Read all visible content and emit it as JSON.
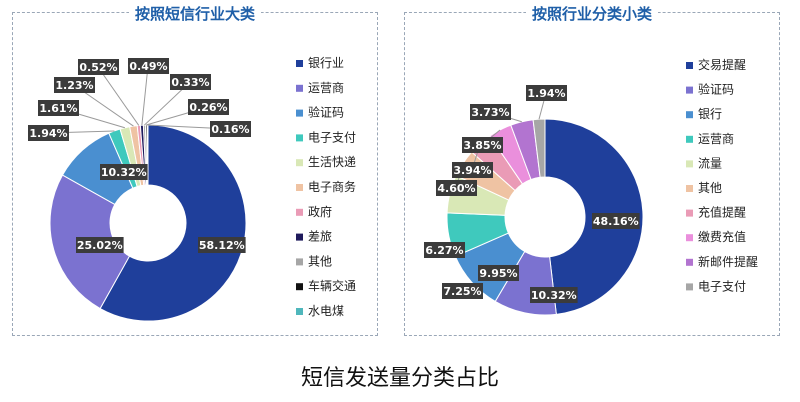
{
  "caption": "短信发送量分类占比",
  "chart_data": [
    {
      "type": "pie",
      "title": "按照短信行业大类",
      "categories": [
        "银行业",
        "运营商",
        "验证码",
        "电子支付",
        "生活快递",
        "电子商务",
        "政府",
        "差旅",
        "其他",
        "车辆交通",
        "水电煤"
      ],
      "values": [
        58.12,
        25.02,
        10.32,
        1.94,
        1.61,
        1.23,
        0.52,
        0.49,
        0.33,
        0.26,
        0.16
      ],
      "data_labels": [
        "58.12%",
        "25.02%",
        "10.32%",
        "1.94%",
        "1.61%",
        "1.23%",
        "0.52%",
        "0.49%",
        "0.33%",
        "0.26%",
        "0.16%"
      ],
      "colors": [
        "#1f3f9b",
        "#7b72d0",
        "#4a8fd0",
        "#3fc9bd",
        "#d9e8b6",
        "#efc3a3",
        "#ea9bb6",
        "#1f1a5c",
        "#a6a6a6",
        "#111111",
        "#4fb7bc"
      ],
      "donut": true,
      "legend_position": "right"
    },
    {
      "type": "pie",
      "title": "按照行业分类小类",
      "categories": [
        "交易提醒",
        "验证码",
        "银行",
        "运营商",
        "流量",
        "其他",
        "充值提醒",
        "缴费充值",
        "新邮件提醒",
        "电子支付"
      ],
      "values": [
        48.16,
        10.32,
        9.95,
        7.25,
        6.27,
        4.6,
        3.94,
        3.85,
        3.73,
        1.94
      ],
      "data_labels": [
        "48.16%",
        "10.32%",
        "9.95%",
        "7.25%",
        "6.27%",
        "4.60%",
        "3.94%",
        "3.85%",
        "3.73%",
        "1.94%"
      ],
      "colors": [
        "#1f3f9b",
        "#7b72d0",
        "#4a8fd0",
        "#3fc9bd",
        "#d9e8b6",
        "#efc3a3",
        "#ea9bb6",
        "#ea8fdc",
        "#b274d0",
        "#a6a6a6"
      ],
      "donut": true,
      "legend_position": "right"
    }
  ]
}
